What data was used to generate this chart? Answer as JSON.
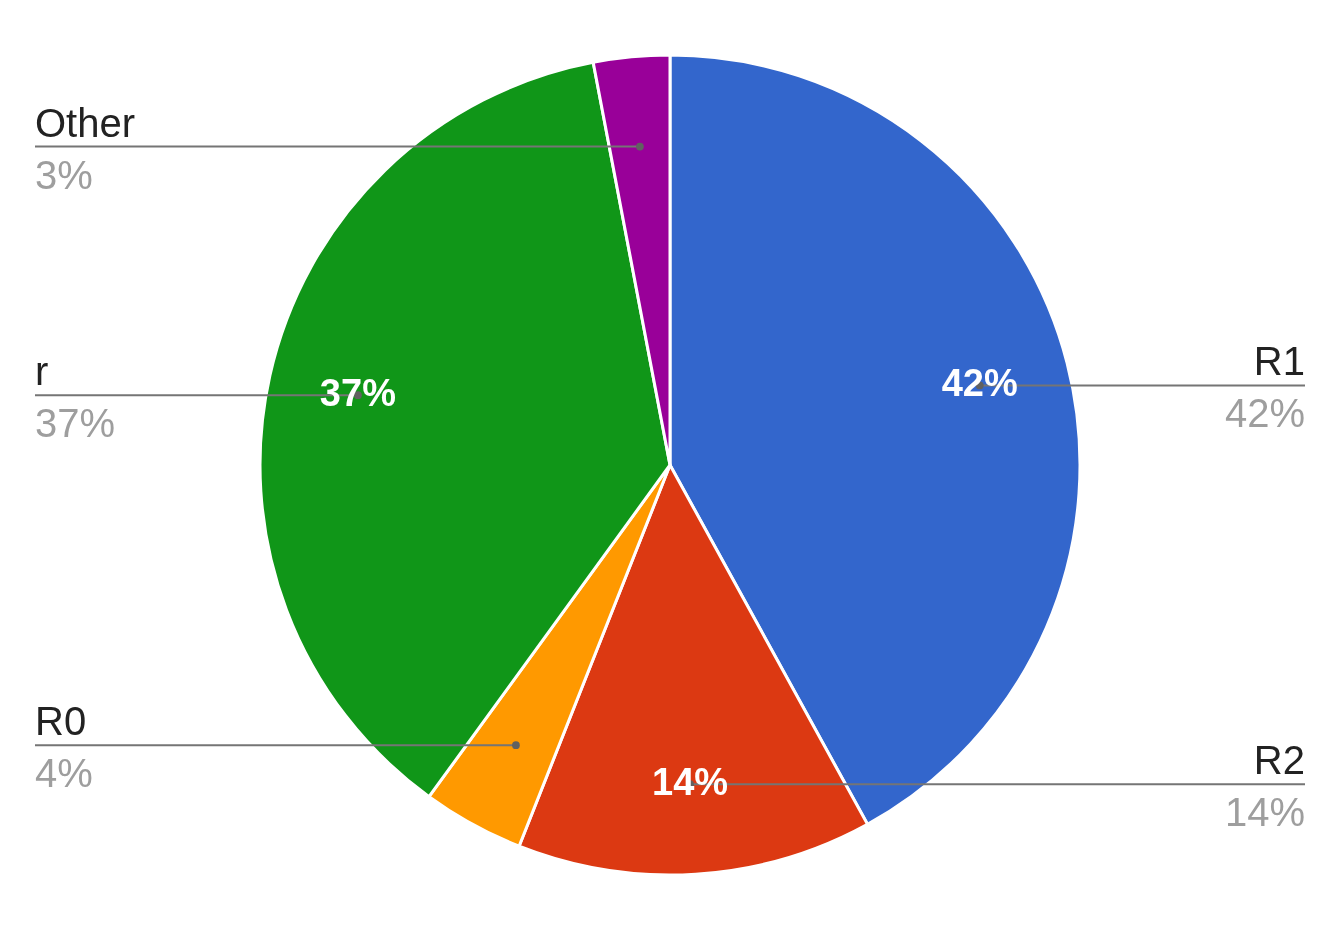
{
  "chart_data": {
    "type": "pie",
    "categories": [
      "R1",
      "R2",
      "R0",
      "r",
      "Other"
    ],
    "values": [
      42,
      14,
      4,
      37,
      3
    ],
    "value_labels": [
      "42%",
      "14%",
      "4%",
      "37%",
      "3%"
    ],
    "colors": [
      "#3366cc",
      "#dc3912",
      "#ff9900",
      "#109618",
      "#990099"
    ]
  }
}
